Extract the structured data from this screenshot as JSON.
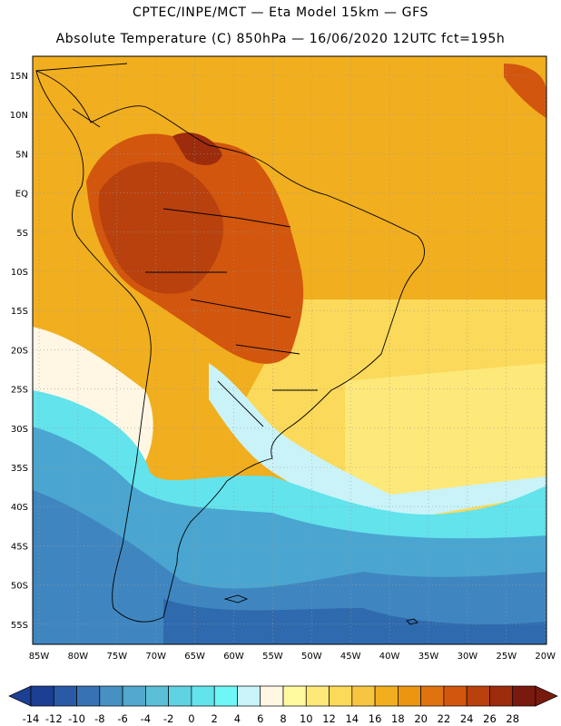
{
  "title": {
    "line1": "CPTEC/INPE/MCT —  Eta Model 15km — GFS",
    "line2": "Absolute Temperature (C) 850hPa — 16/06/2020 12UTC fct=195h"
  },
  "axes": {
    "lat_labels": [
      "15N",
      "10N",
      "5N",
      "EQ",
      "5S",
      "10S",
      "15S",
      "20S",
      "25S",
      "30S",
      "35S",
      "40S",
      "45S",
      "50S",
      "55S"
    ],
    "lon_labels": [
      "85W",
      "80W",
      "75W",
      "70W",
      "65W",
      "60W",
      "55W",
      "50W",
      "45W",
      "40W",
      "35W",
      "30W",
      "25W",
      "20W"
    ],
    "grid": "dotted"
  },
  "colorbar": {
    "labels": [
      "-14",
      "-12",
      "-10",
      "-8",
      "-6",
      "-4",
      "-2",
      "0",
      "2",
      "4",
      "6",
      "8",
      "10",
      "12",
      "14",
      "16",
      "18",
      "20",
      "22",
      "24",
      "26",
      "28"
    ],
    "colors": [
      "#1c3f94",
      "#2a5aa6",
      "#3773b4",
      "#4690c2",
      "#52a8ce",
      "#5bbfd8",
      "#5fd2e2",
      "#63e3ec",
      "#6ff6f6",
      "#c9f3f8",
      "#fff7e4",
      "#fff89e",
      "#fde87a",
      "#fbd95a",
      "#f7c540",
      "#f1ae1e",
      "#eb9511",
      "#e0720f",
      "#d2560d",
      "#b9410d",
      "#9c2c0c",
      "#7a1a0e"
    ],
    "under_color": "#1c3f94",
    "over_color": "#7a1a0e"
  },
  "map_regions": {
    "ocean_south_cold": "#3f86c0",
    "ocean_south_mid": "#4aa6d0",
    "ocean_band": "#63e3ec",
    "warm_north": "#f1ae1e",
    "hot_interior": "#d2560d",
    "hottest_core": "#b9410d",
    "mid_south": "#fbd95a",
    "pale_band": "#fff7e4"
  }
}
